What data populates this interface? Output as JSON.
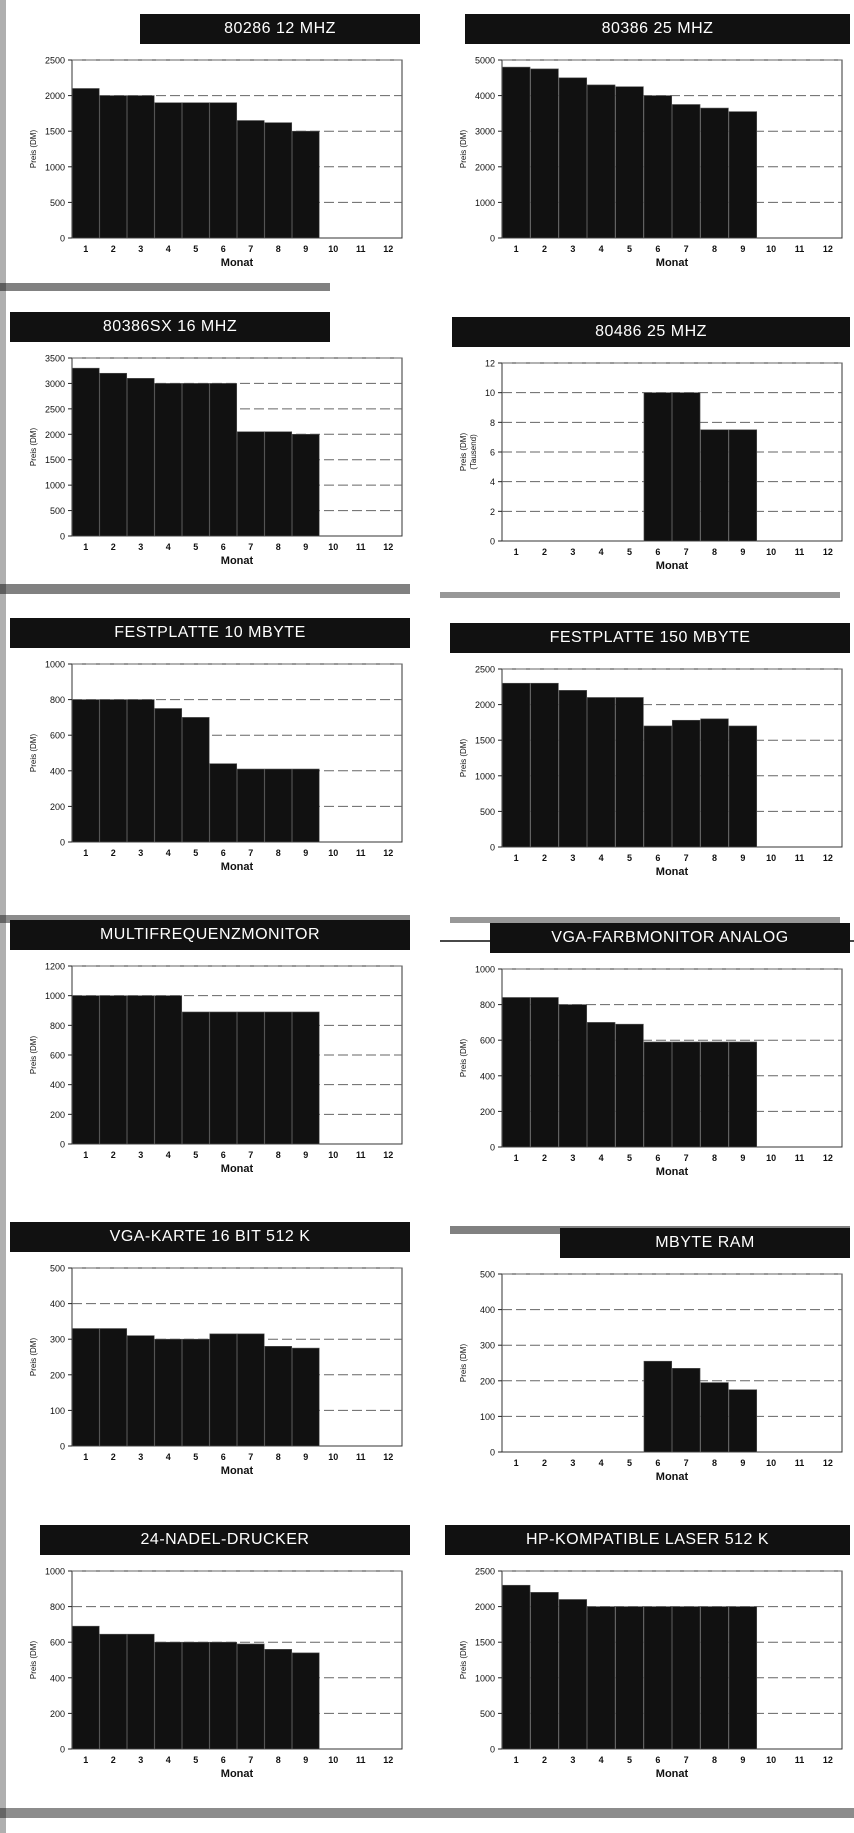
{
  "page": {
    "background": "#ffffff",
    "ink": "#111111"
  },
  "chart_data": [
    {
      "type": "bar",
      "title": "80286 12 MHZ",
      "xlabel": "Monat",
      "ylabel": "Preis (DM)",
      "ylabel2": "",
      "categories": [
        "1",
        "2",
        "3",
        "4",
        "5",
        "6",
        "7",
        "8",
        "9",
        "10",
        "11",
        "12"
      ],
      "values": [
        2100,
        2000,
        2000,
        1900,
        1900,
        1900,
        1650,
        1620,
        1500,
        null,
        null,
        null
      ],
      "ylim": [
        0,
        2500
      ],
      "yticks": [
        0,
        500,
        1000,
        1500,
        2000,
        2500
      ],
      "grid": true
    },
    {
      "type": "bar",
      "title": "80386 25 MHZ",
      "xlabel": "Monat",
      "ylabel": "Preis (DM)",
      "ylabel2": "",
      "categories": [
        "1",
        "2",
        "3",
        "4",
        "5",
        "6",
        "7",
        "8",
        "9",
        "10",
        "11",
        "12"
      ],
      "values": [
        4800,
        4750,
        4500,
        4300,
        4250,
        4000,
        3750,
        3650,
        3550,
        null,
        null,
        null
      ],
      "ylim": [
        0,
        5000
      ],
      "yticks": [
        0,
        1000,
        2000,
        3000,
        4000,
        5000
      ],
      "grid": true
    },
    {
      "type": "bar",
      "title": "80386SX 16 MHZ",
      "xlabel": "Monat",
      "ylabel": "Preis (DM)",
      "ylabel2": "",
      "categories": [
        "1",
        "2",
        "3",
        "4",
        "5",
        "6",
        "7",
        "8",
        "9",
        "10",
        "11",
        "12"
      ],
      "values": [
        3300,
        3200,
        3100,
        3000,
        3000,
        3000,
        2050,
        2050,
        2000,
        null,
        null,
        null
      ],
      "ylim": [
        0,
        3500
      ],
      "yticks": [
        0,
        500,
        1000,
        1500,
        2000,
        2500,
        3000,
        3500
      ],
      "grid": true
    },
    {
      "type": "bar",
      "title": "80486 25 MHZ",
      "xlabel": "Monat",
      "ylabel": "Preis (DM)",
      "ylabel2": "(Tausend)",
      "categories": [
        "1",
        "2",
        "3",
        "4",
        "5",
        "6",
        "7",
        "8",
        "9",
        "10",
        "11",
        "12"
      ],
      "values": [
        null,
        null,
        null,
        null,
        null,
        10,
        10,
        7.5,
        7.5,
        null,
        null,
        null
      ],
      "ylim": [
        0,
        12
      ],
      "yticks": [
        0,
        2,
        4,
        6,
        8,
        10,
        12
      ],
      "grid": true
    },
    {
      "type": "bar",
      "title": "FESTPLATTE 10 MBYTE",
      "xlabel": "Monat",
      "ylabel": "Preis (DM)",
      "ylabel2": "",
      "categories": [
        "1",
        "2",
        "3",
        "4",
        "5",
        "6",
        "7",
        "8",
        "9",
        "10",
        "11",
        "12"
      ],
      "values": [
        800,
        800,
        800,
        750,
        700,
        440,
        410,
        410,
        410,
        null,
        null,
        null
      ],
      "ylim": [
        0,
        1000
      ],
      "yticks": [
        0,
        200,
        400,
        600,
        800,
        1000
      ],
      "grid": true
    },
    {
      "type": "bar",
      "title": "FESTPLATTE 150 MBYTE",
      "xlabel": "Monat",
      "ylabel": "Preis (DM)",
      "ylabel2": "",
      "categories": [
        "1",
        "2",
        "3",
        "4",
        "5",
        "6",
        "7",
        "8",
        "9",
        "10",
        "11",
        "12"
      ],
      "values": [
        2300,
        2300,
        2200,
        2100,
        2100,
        1700,
        1780,
        1800,
        1700,
        null,
        null,
        null
      ],
      "ylim": [
        0,
        2500
      ],
      "yticks": [
        0,
        500,
        1000,
        1500,
        2000,
        2500
      ],
      "grid": true
    },
    {
      "type": "bar",
      "title": "MULTIFREQUENZMONITOR",
      "xlabel": "Monat",
      "ylabel": "Preis (DM)",
      "ylabel2": "",
      "categories": [
        "1",
        "2",
        "3",
        "4",
        "5",
        "6",
        "7",
        "8",
        "9",
        "10",
        "11",
        "12"
      ],
      "values": [
        1000,
        1000,
        1000,
        1000,
        890,
        890,
        890,
        890,
        890,
        null,
        null,
        null
      ],
      "ylim": [
        0,
        1200
      ],
      "yticks": [
        0,
        200,
        400,
        600,
        800,
        1000,
        1200
      ],
      "grid": true
    },
    {
      "type": "bar",
      "title": "VGA-FARBMONITOR ANALOG",
      "xlabel": "Monat",
      "ylabel": "Preis (DM)",
      "ylabel2": "",
      "categories": [
        "1",
        "2",
        "3",
        "4",
        "5",
        "6",
        "7",
        "8",
        "9",
        "10",
        "11",
        "12"
      ],
      "values": [
        840,
        840,
        800,
        700,
        690,
        590,
        590,
        590,
        590,
        null,
        null,
        null
      ],
      "ylim": [
        0,
        1000
      ],
      "yticks": [
        0,
        200,
        400,
        600,
        800,
        1000
      ],
      "grid": true
    },
    {
      "type": "bar",
      "title": "VGA-KARTE 16 BIT 512 K",
      "xlabel": "Monat",
      "ylabel": "Preis (DM)",
      "ylabel2": "",
      "categories": [
        "1",
        "2",
        "3",
        "4",
        "5",
        "6",
        "7",
        "8",
        "9",
        "10",
        "11",
        "12"
      ],
      "values": [
        330,
        330,
        310,
        300,
        300,
        315,
        315,
        280,
        275,
        null,
        null,
        null
      ],
      "ylim": [
        0,
        500
      ],
      "yticks": [
        0,
        100,
        200,
        300,
        400,
        500
      ],
      "grid": true
    },
    {
      "type": "bar",
      "title": "MBYTE RAM",
      "xlabel": "Monat",
      "ylabel": "Preis (DM)",
      "ylabel2": "",
      "categories": [
        "1",
        "2",
        "3",
        "4",
        "5",
        "6",
        "7",
        "8",
        "9",
        "10",
        "11",
        "12"
      ],
      "values": [
        null,
        null,
        null,
        null,
        null,
        255,
        235,
        195,
        175,
        null,
        null,
        null
      ],
      "ylim": [
        0,
        500
      ],
      "yticks": [
        0,
        100,
        200,
        300,
        400,
        500
      ],
      "grid": true
    },
    {
      "type": "bar",
      "title": "24-NADEL-DRUCKER",
      "xlabel": "Monat",
      "ylabel": "Preis (DM)",
      "ylabel2": "",
      "categories": [
        "1",
        "2",
        "3",
        "4",
        "5",
        "6",
        "7",
        "8",
        "9",
        "10",
        "11",
        "12"
      ],
      "values": [
        690,
        645,
        645,
        600,
        600,
        600,
        590,
        560,
        540,
        null,
        null,
        null
      ],
      "ylim": [
        0,
        1000
      ],
      "yticks": [
        0,
        200,
        400,
        600,
        800,
        1000
      ],
      "grid": true
    },
    {
      "type": "bar",
      "title": "HP-KOMPATIBLE LASER 512 K",
      "xlabel": "Monat",
      "ylabel": "Preis (DM)",
      "ylabel2": "",
      "categories": [
        "1",
        "2",
        "3",
        "4",
        "5",
        "6",
        "7",
        "8",
        "9",
        "10",
        "11",
        "12"
      ],
      "values": [
        2300,
        2200,
        2100,
        2000,
        2000,
        2000,
        2000,
        2000,
        2000,
        null,
        null,
        null
      ],
      "ylim": [
        0,
        2500
      ],
      "yticks": [
        0,
        500,
        1000,
        1500,
        2000,
        2500
      ],
      "grid": true
    }
  ]
}
